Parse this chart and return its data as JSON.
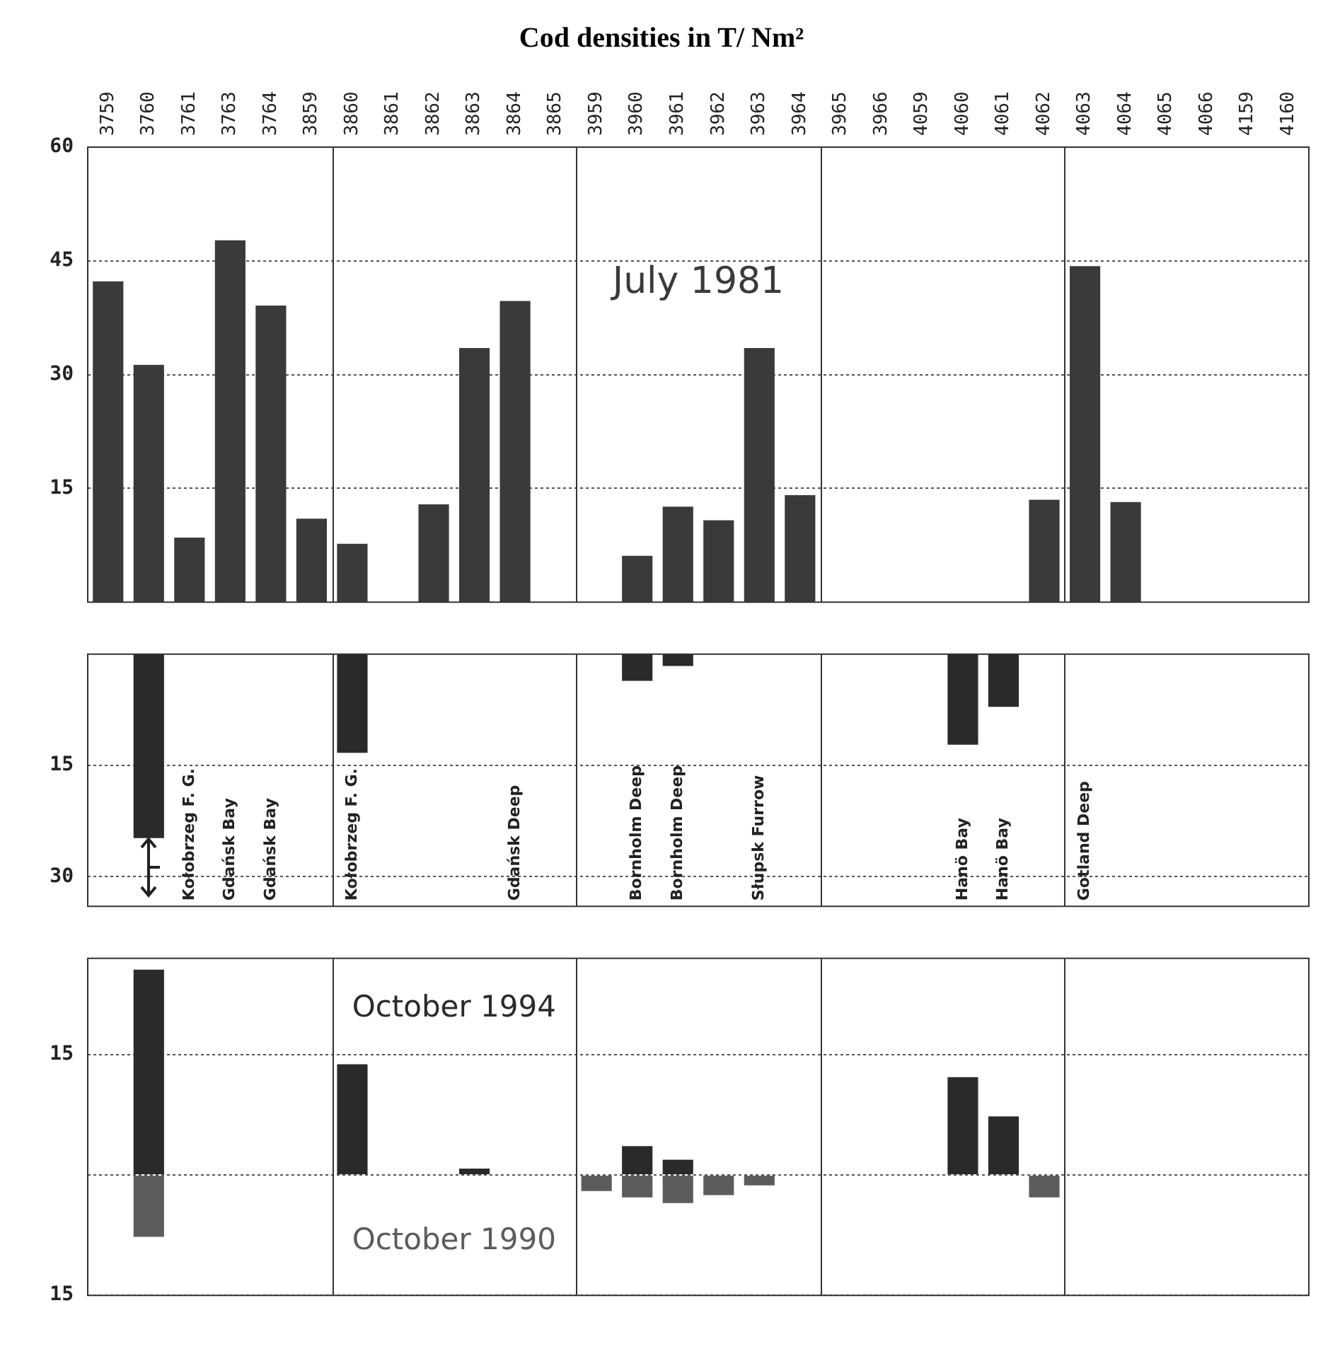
{
  "chart_data": [
    {
      "type": "bar",
      "title": "Cod densities in T/ Nm²",
      "categories": [
        "3759",
        "3760",
        "3761",
        "3763",
        "3764",
        "3859",
        "3860",
        "3861",
        "3862",
        "3863",
        "3864",
        "3865",
        "3959",
        "3960",
        "3961",
        "3962",
        "3963",
        "3964",
        "3965",
        "3966",
        "4059",
        "4060",
        "4061",
        "4062",
        "4063",
        "4064",
        "4065",
        "4066",
        "4159",
        "4160"
      ],
      "series": [
        {
          "name": "July 1981",
          "color": "#3a3a3a",
          "values": [
            42.3,
            31.3,
            8.5,
            47.7,
            39.1,
            11,
            7.7,
            0,
            12.9,
            33.5,
            39.7,
            0,
            0,
            6.1,
            12.6,
            10.8,
            33.5,
            14.1,
            0,
            0,
            0,
            0,
            0,
            13.5,
            44.3,
            13.2,
            0,
            0,
            0,
            0
          ]
        }
      ],
      "ylim": [
        0,
        60
      ],
      "yticks": [
        15,
        30,
        45,
        60
      ],
      "grid": "y"
    },
    {
      "type": "bar",
      "categories": [
        "3759",
        "3760",
        "3761",
        "3763",
        "3764",
        "3859",
        "3860",
        "3861",
        "3862",
        "3863",
        "3864",
        "3865",
        "3959",
        "3960",
        "3961",
        "3962",
        "3963",
        "3964",
        "3965",
        "3966",
        "4059",
        "4060",
        "4061",
        "4062",
        "4063",
        "4064",
        "4065",
        "4066",
        "4159",
        "4160"
      ],
      "series": [
        {
          "color": "#2a2a2a",
          "values": [
            null,
            24.8,
            null,
            null,
            null,
            null,
            13.3,
            null,
            null,
            null,
            null,
            null,
            null,
            3.6,
            1.6,
            null,
            null,
            null,
            null,
            null,
            null,
            12.2,
            7.1,
            null,
            null,
            null,
            null,
            null,
            null,
            null
          ]
        }
      ],
      "ylim": [
        34,
        0
      ],
      "yticks": [
        15,
        30
      ],
      "grid": "y",
      "tick_labels": "y",
      "annotations": [
        "Kołobrzeg F. G.",
        "Gdańsk Bay",
        "Gdańsk Bay",
        "Kołobrzeg F. G.",
        "Gdańsk Deep",
        "Bornholm Deep",
        "Bornholm Deep",
        "Słupsk Furrow",
        "Hanö Bay",
        "Hanö Bay",
        "Gotland Deep"
      ]
    },
    {
      "type": "bar",
      "stacked": true,
      "categories": [
        "3759",
        "3760",
        "3761",
        "3763",
        "3764",
        "3859",
        "3860",
        "3861",
        "3862",
        "3863",
        "3864",
        "3865",
        "3959",
        "3960",
        "3961",
        "3962",
        "3963",
        "3964",
        "3965",
        "3966",
        "4059",
        "4060",
        "4061",
        "4062",
        "4063",
        "4064",
        "4065",
        "4066",
        "4159",
        "4160"
      ],
      "series": [
        {
          "name": "October 1994",
          "color": "#2a2a2a",
          "values": [
            0,
            25.6,
            0,
            0,
            0,
            0,
            13.8,
            0,
            0,
            0.8,
            0,
            0,
            0,
            3.6,
            1.9,
            0,
            0,
            0,
            0,
            0,
            0,
            12.2,
            7.3,
            0,
            0,
            0,
            0,
            0,
            0,
            0
          ]
        },
        {
          "name": "October 1990",
          "color": "#5c5c5c",
          "values": [
            null,
            -7.7,
            null,
            null,
            null,
            null,
            null,
            null,
            null,
            null,
            null,
            null,
            -2,
            -2.8,
            -3.5,
            -2.5,
            -1.3,
            null,
            null,
            null,
            null,
            null,
            null,
            -2.8,
            null,
            null,
            null,
            null,
            null,
            null
          ]
        }
      ],
      "ylim": [
        -15,
        27
      ],
      "yticks": [
        {
          "value": -15,
          "label": "15"
        },
        {
          "value": 0,
          "label": null
        },
        15
      ],
      "grid": "y",
      "tick_labels": "y"
    }
  ]
}
